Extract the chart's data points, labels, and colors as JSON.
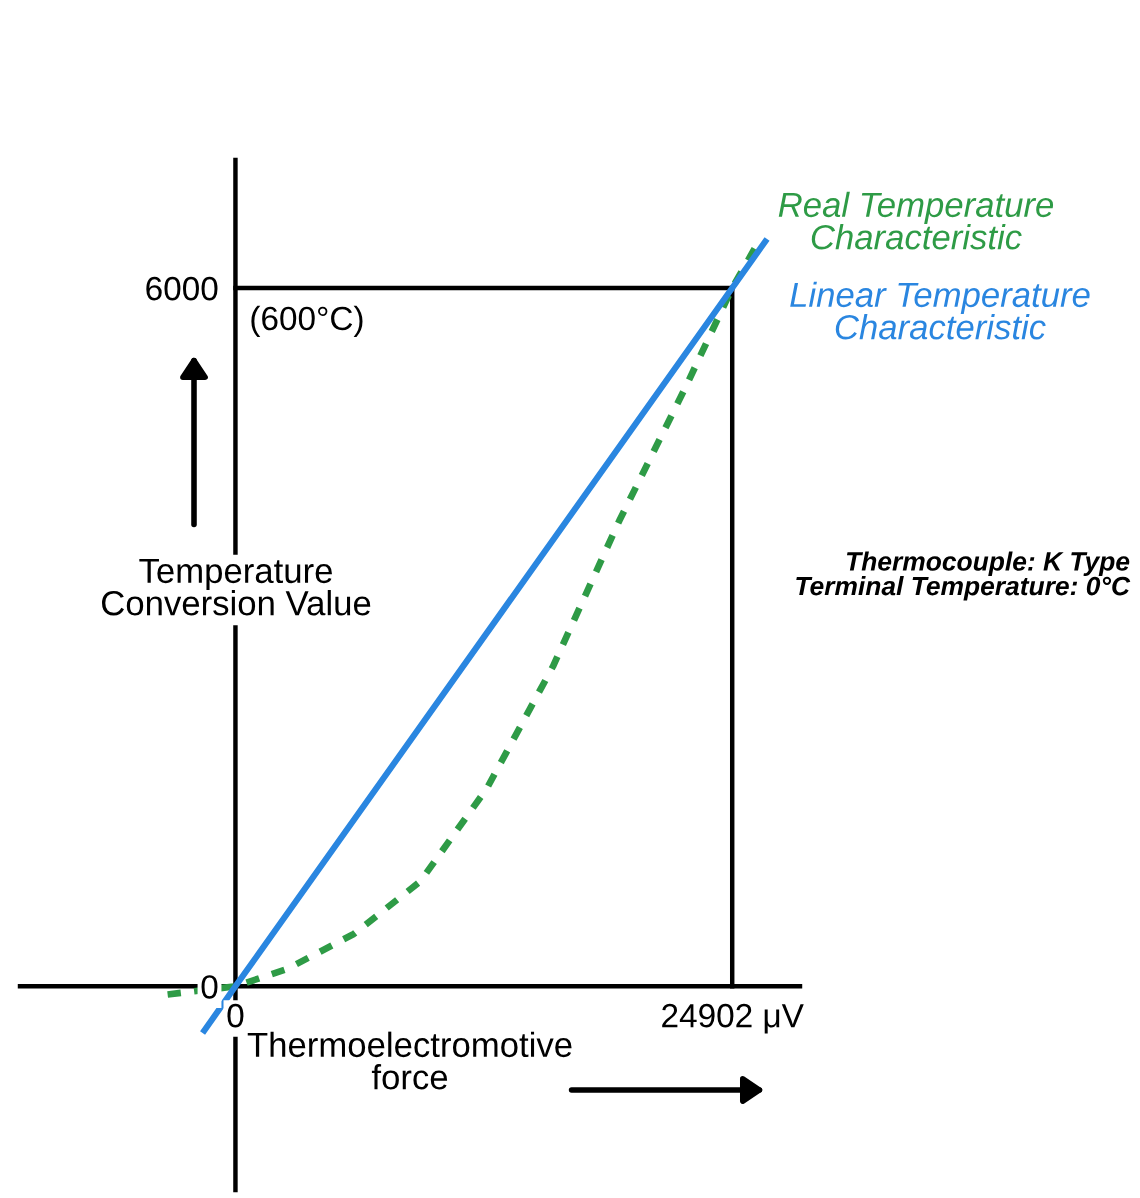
{
  "chart_data": {
    "type": "line",
    "xlabel": "Thermoelectromotive\nforce",
    "ylabel": "Temperature\nConversion Value",
    "xlim": [
      -10800,
      28300
    ],
    "ylim": [
      -1750,
      7100
    ],
    "xticks": [
      0,
      {
        "value": 24902,
        "label": "24902 μV"
      }
    ],
    "yticks": [
      0,
      6000
    ],
    "series": [
      {
        "name": "Real Temperature\nCharacteristic",
        "color": "#2e9b46",
        "line_style": "dotted",
        "x": [
          -3400,
          0,
          2600,
          5930,
          9260,
          12600,
          15920,
          19240,
          22570,
          24902,
          26230
        ],
        "values": [
          -70,
          0,
          150,
          450,
          900,
          1700,
          2750,
          4000,
          5150,
          6000,
          6400
        ]
      },
      {
        "name": "Linear Temperature\nCharacteristic",
        "color": "#2a86e0",
        "line_style": "solid",
        "x": [
          -1560,
          0,
          24902,
          26560
        ],
        "values": [
          -380,
          0,
          6000,
          6400
        ]
      }
    ],
    "ref_lines": [
      {
        "axis": "x",
        "value": 24902,
        "color": "#000000"
      },
      {
        "axis": "y",
        "value": 6000,
        "color": "#000000"
      }
    ],
    "annotations": [
      {
        "text": "(600°C)",
        "x": 0,
        "y": 6000
      },
      "Thermocouple: K Type\nTerminal Temperature: 0°C"
    ]
  }
}
